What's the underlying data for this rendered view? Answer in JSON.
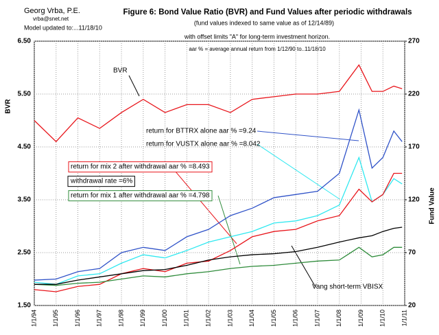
{
  "chart_data": {
    "type": "line",
    "title": "Figure 6: Bond Value Ratio (BVR) and Fund Values after periodic withdrawals",
    "subtitle": "(fund values indexed to same value as of 12/14/89)",
    "notes": [
      "with offset limits \"A\" for long-term investment horizon.",
      "aar % = average annual return from 1/12/90 to..11/18/10"
    ],
    "author": [
      "Georg Vrba, P.E.",
      "vrba@snet.net",
      "Model updated to:...11/18/10"
    ],
    "y_label": "BVR",
    "y2_label": "Fund Value",
    "annotations": [
      "BVR",
      "return for BTTRX alone aar % =9.24",
      "return for VUSTX alone aar % =8.042",
      "return for mix 2 after withdrawal aar % =8.493",
      "withdrawal rate =6%",
      "return for mix 1 after withdrawal aar % =4.798",
      "Vang short-term VBISX"
    ],
    "x": [
      1994,
      1995,
      1996,
      1997,
      1998,
      1999,
      2000,
      2001,
      2002,
      2003,
      2004,
      2005,
      2006,
      2007,
      2008,
      2008.9,
      2009.5,
      2010,
      2010.5,
      2010.88
    ],
    "xlim": [
      1994,
      2011
    ],
    "xticks": [
      {
        "value": 1994,
        "label": "1/1/94"
      },
      {
        "value": 1995,
        "label": "1/1/95"
      },
      {
        "value": 1996,
        "label": "1/1/96"
      },
      {
        "value": 1997,
        "label": "1/1/97"
      },
      {
        "value": 1998,
        "label": "1/1/98"
      },
      {
        "value": 1999,
        "label": "1/1/99"
      },
      {
        "value": 2000,
        "label": "1/1/00"
      },
      {
        "value": 2001,
        "label": "1/1/01"
      },
      {
        "value": 2002,
        "label": "1/1/02"
      },
      {
        "value": 2003,
        "label": "1/1/03"
      },
      {
        "value": 2004,
        "label": "1/1/04"
      },
      {
        "value": 2005,
        "label": "1/1/05"
      },
      {
        "value": 2006,
        "label": "1/1/06"
      },
      {
        "value": 2007,
        "label": "1/1/07"
      },
      {
        "value": 2008,
        "label": "1/1/08"
      },
      {
        "value": 2009,
        "label": "1/1/09"
      },
      {
        "value": 2010,
        "label": "1/1/10"
      },
      {
        "value": 2011,
        "label": "1/1/11"
      }
    ],
    "ylim": [
      1.5,
      6.5
    ],
    "yticks": [
      {
        "value": 1.5,
        "label": "1.50"
      },
      {
        "value": 2.5,
        "label": "2.50"
      },
      {
        "value": 3.5,
        "label": "3.50"
      },
      {
        "value": 4.5,
        "label": "4.50"
      },
      {
        "value": 5.5,
        "label": "5.50"
      },
      {
        "value": 6.5,
        "label": "6.50"
      }
    ],
    "y2lim": [
      20,
      270
    ],
    "y2ticks": [
      20,
      70,
      120,
      170,
      220,
      270
    ],
    "grid": true,
    "series": [
      {
        "color": "#e8141a",
        "values": [
          5.0,
          4.6,
          5.05,
          4.85,
          5.15,
          5.4,
          5.15,
          5.3,
          5.3,
          5.15,
          5.4,
          5.45,
          5.5,
          5.5,
          5.55,
          6.05,
          5.55,
          5.55,
          5.65,
          5.6
        ]
      },
      {
        "color": "#2f52c8",
        "axis": "y2",
        "values": [
          44,
          45,
          52,
          55,
          70,
          75,
          72,
          85,
          92,
          105,
          112,
          122,
          125,
          128,
          145,
          205,
          150,
          160,
          185,
          175
        ]
      },
      {
        "color": "#2ee8f0",
        "axis": "y2",
        "values": [
          42,
          40,
          48,
          50,
          60,
          68,
          65,
          72,
          80,
          85,
          90,
          98,
          100,
          105,
          115,
          160,
          118,
          125,
          140,
          135
        ]
      },
      {
        "color": "#e8141a",
        "axis": "y2",
        "values": [
          35,
          33,
          38,
          40,
          50,
          55,
          52,
          60,
          62,
          72,
          85,
          90,
          92,
          100,
          105,
          130,
          118,
          125,
          145,
          145
        ]
      },
      {
        "color": "#2e8b3a",
        "axis": "y2",
        "values": [
          40,
          39,
          41,
          42,
          45,
          48,
          47,
          50,
          52,
          55,
          57,
          58,
          60,
          62,
          63,
          75,
          66,
          68,
          75,
          75
        ]
      },
      {
        "color": "#000000",
        "axis": "y2",
        "values": [
          40,
          40,
          44,
          47,
          50,
          53,
          54,
          58,
          63,
          66,
          68,
          69,
          71,
          75,
          80,
          84,
          86,
          90,
          93,
          94
        ]
      }
    ]
  }
}
